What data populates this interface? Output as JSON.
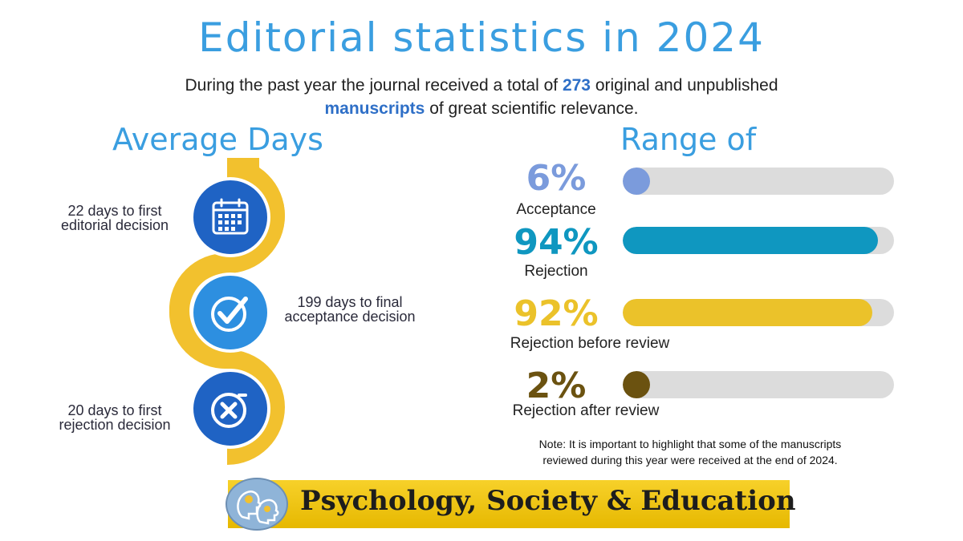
{
  "title": "Editorial statistics in 2024",
  "intro": {
    "before": "During the past year the journal received a total of ",
    "count": "273",
    "middle": " original and unpublished ",
    "keyword": "manuscripts",
    "after": " of great scientific relevance."
  },
  "average_days": {
    "heading": "Average Days",
    "items": [
      {
        "label_line1": "22 days to first",
        "label_line2": "editorial decision",
        "icon": "calendar-icon",
        "color": "#1f63c4"
      },
      {
        "label_line1": "199 days to final",
        "label_line2": "acceptance decision",
        "icon": "check-circle-icon",
        "color": "#2d8fe0"
      },
      {
        "label_line1": "20 days to first",
        "label_line2": "rejection decision",
        "icon": "x-circle-icon",
        "color": "#1f63c4"
      }
    ],
    "ribbon_color": "#f2c12e"
  },
  "range": {
    "heading": "Range of",
    "items": [
      {
        "percent": "6%",
        "value": 6,
        "label": "Acceptance",
        "color": "#7b9bdc"
      },
      {
        "percent": "94%",
        "value": 94,
        "label": "Rejection",
        "color": "#0f97c0"
      },
      {
        "percent": "92%",
        "value": 92,
        "label": "Rejection before review",
        "color": "#ebc22a"
      },
      {
        "percent": "2%",
        "value": 2,
        "label": "Rejection after review",
        "color": "#6b5210"
      }
    ]
  },
  "note": {
    "line1": "Note: It is important to highlight that some of the manuscripts",
    "line2": "reviewed during this year were received at the end of 2024."
  },
  "banner": {
    "text": "Psychology, Society  & Education"
  }
}
